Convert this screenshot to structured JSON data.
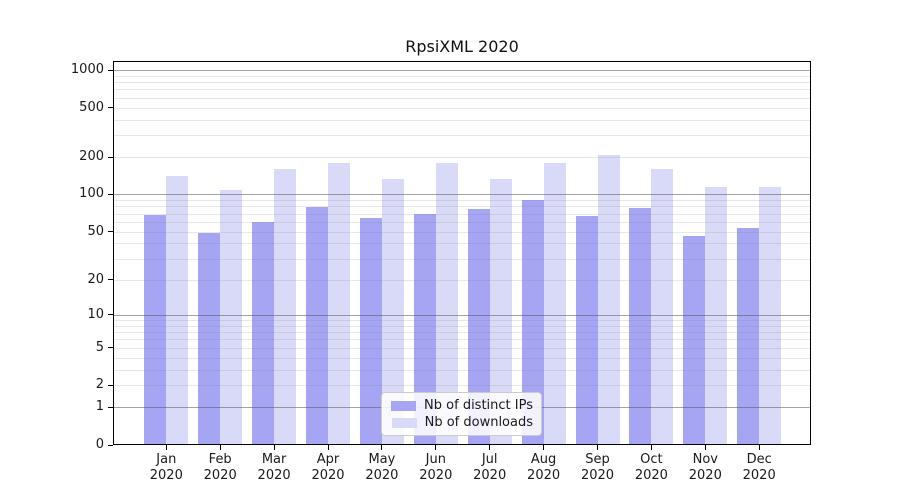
{
  "title": "RpsiXML 2020",
  "colors": {
    "bar_ips": "#a5a5f3",
    "bar_downloads": "#d9d9f8",
    "grid_major": "rgba(90,90,90,0.55)",
    "grid_minor": "rgba(130,130,130,0.18)",
    "spine": "#000000",
    "text": "#1a1a1a",
    "legend_border": "#cccccc",
    "legend_bg": "rgba(255,255,255,0.85)"
  },
  "legend": {
    "items": [
      {
        "label": "Nb of distinct IPs",
        "series": "ips"
      },
      {
        "label": "Nb of downloads",
        "series": "downloads"
      }
    ]
  },
  "chart_data": {
    "type": "bar",
    "title": "RpsiXML 2020",
    "categories": [
      "Jan",
      "Feb",
      "Mar",
      "Apr",
      "May",
      "Jun",
      "Jul",
      "Aug",
      "Sep",
      "Oct",
      "Nov",
      "Dec"
    ],
    "x_year": "2020",
    "series": [
      {
        "name": "Nb of distinct IPs",
        "values": [
          68,
          49,
          60,
          79,
          64,
          69,
          77,
          90,
          67,
          78,
          46,
          53
        ]
      },
      {
        "name": "Nb of downloads",
        "values": [
          141,
          108,
          160,
          179,
          134,
          178,
          133,
          181,
          210,
          161,
          116,
          115
        ]
      }
    ],
    "y_scale": "log1p",
    "ylim": [
      0,
      1000
    ],
    "y_ticks": [
      0,
      1,
      2,
      5,
      10,
      20,
      50,
      100,
      200,
      500,
      1000
    ],
    "y_major_gridlines": [
      1,
      10,
      100,
      1000
    ],
    "y_minor_gridlines": [
      2,
      3,
      4,
      5,
      6,
      7,
      8,
      9,
      20,
      30,
      40,
      50,
      60,
      70,
      80,
      90,
      200,
      300,
      400,
      500,
      600,
      700,
      800,
      900
    ],
    "legend_position": "lower center",
    "grid": true,
    "xlabel": "",
    "ylabel": ""
  }
}
